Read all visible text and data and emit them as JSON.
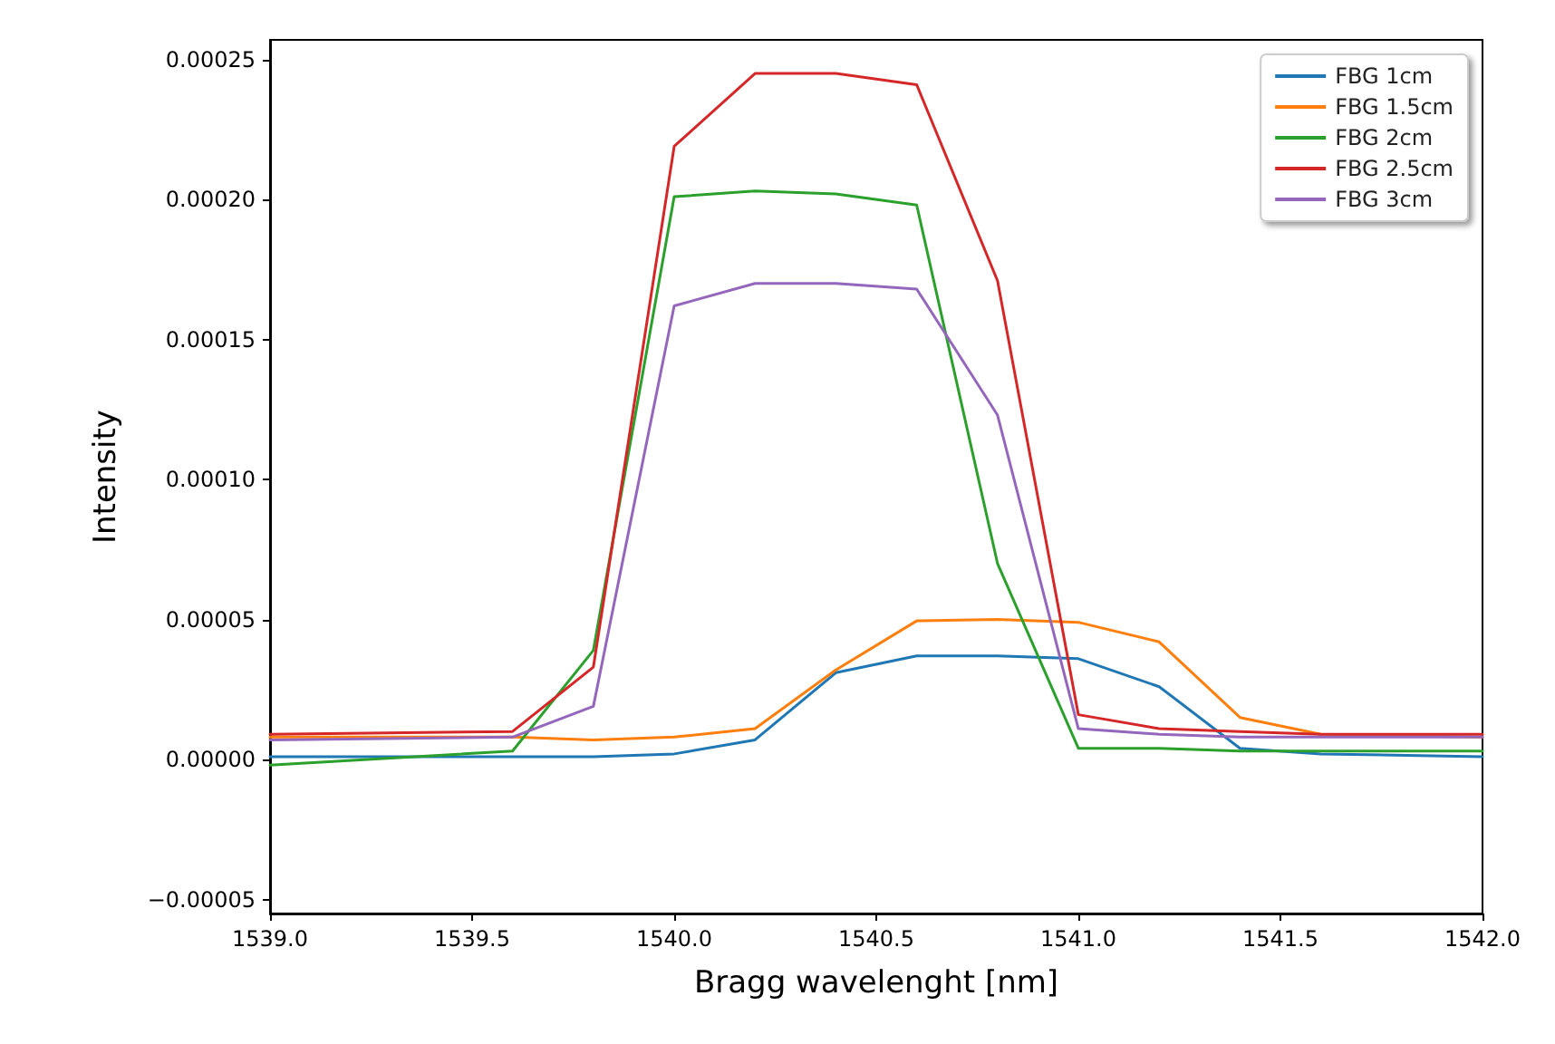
{
  "chart_data": {
    "type": "line",
    "xlabel": "Bragg wavelenght [nm]",
    "ylabel": "Intensity",
    "x": [
      1539.0,
      1539.6,
      1539.8,
      1540.0,
      1540.2,
      1540.4,
      1540.6,
      1540.8,
      1541.0,
      1541.2,
      1541.4,
      1541.6,
      1542.0
    ],
    "series": [
      {
        "name": "FBG 1cm",
        "color": "#1f77b4",
        "values": [
          1e-06,
          1e-06,
          1e-06,
          2e-06,
          7e-06,
          3.1e-05,
          3.7e-05,
          3.7e-05,
          3.6e-05,
          2.6e-05,
          4e-06,
          2e-06,
          1e-06
        ]
      },
      {
        "name": "FBG 1.5cm",
        "color": "#ff7f0e",
        "values": [
          8e-06,
          8e-06,
          7e-06,
          8e-06,
          1.1e-05,
          3.2e-05,
          4.95e-05,
          5e-05,
          4.9e-05,
          4.2e-05,
          1.5e-05,
          9e-06,
          8e-06
        ]
      },
      {
        "name": "FBG 2cm",
        "color": "#2ca02c",
        "values": [
          -2e-06,
          3e-06,
          3.9e-05,
          0.000201,
          0.000203,
          0.000202,
          0.000198,
          7e-05,
          4e-06,
          4e-06,
          3e-06,
          3e-06,
          3e-06
        ]
      },
      {
        "name": "FBG 2.5cm",
        "color": "#d62728",
        "values": [
          9e-06,
          1e-05,
          3.3e-05,
          0.000219,
          0.000245,
          0.000245,
          0.000241,
          0.000171,
          1.6e-05,
          1.1e-05,
          1e-05,
          9e-06,
          9e-06
        ]
      },
      {
        "name": "FBG 3cm",
        "color": "#9467bd",
        "values": [
          7e-06,
          8e-06,
          1.9e-05,
          0.000162,
          0.00017,
          0.00017,
          0.000168,
          0.000123,
          1.1e-05,
          9e-06,
          8e-06,
          8e-06,
          8e-06
        ]
      }
    ],
    "xlim": [
      1539.0,
      1542.0
    ],
    "xticks": [
      {
        "value": 1539.0,
        "label": "1539.0"
      },
      {
        "value": 1539.5,
        "label": "1539.5"
      },
      {
        "value": 1540.0,
        "label": "1540.0"
      },
      {
        "value": 1540.5,
        "label": "1540.5"
      },
      {
        "value": 1541.0,
        "label": "1541.0"
      },
      {
        "value": 1541.5,
        "label": "1541.5"
      },
      {
        "value": 1542.0,
        "label": "1542.0"
      }
    ],
    "ylim": [
      -5.5e-05,
      0.000257
    ],
    "yticks": [
      {
        "value": -5e-05,
        "label": "−0.00005"
      },
      {
        "value": 0,
        "label": "0.00000"
      },
      {
        "value": 5e-05,
        "label": "0.00005"
      },
      {
        "value": 0.0001,
        "label": "0.00010"
      },
      {
        "value": 0.00015,
        "label": "0.00015"
      },
      {
        "value": 0.0002,
        "label": "0.00020"
      },
      {
        "value": 0.00025,
        "label": "0.00025"
      }
    ],
    "grid": false,
    "legend": "top right",
    "marker": "none",
    "line_style": "solid"
  }
}
